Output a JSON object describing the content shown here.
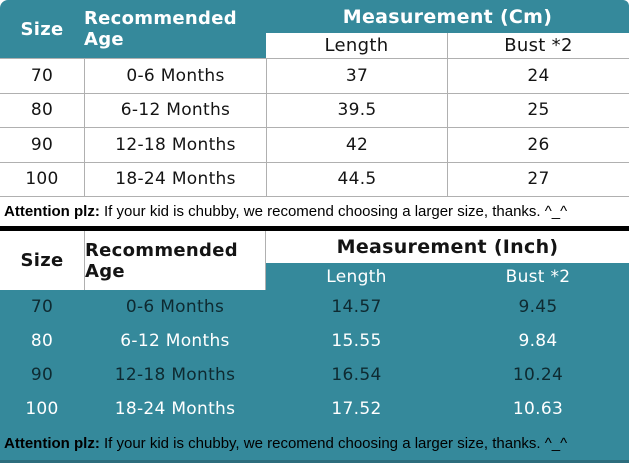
{
  "colors": {
    "accent_teal": "#35899b",
    "divider_black": "#000000",
    "gridline_gray": "#b0b0b0",
    "bottom_edge_teal": "#2d6d7d"
  },
  "table_cm": {
    "headers": {
      "size": "Size",
      "age": "Recommended Age",
      "measurement": "Measurement (Cm)",
      "length": "Length",
      "bust": "Bust *2"
    },
    "rows": [
      {
        "size": "70",
        "age": "0-6 Months",
        "length": "37",
        "bust": "24"
      },
      {
        "size": "80",
        "age": "6-12 Months",
        "length": "39.5",
        "bust": "25"
      },
      {
        "size": "90",
        "age": "12-18 Months",
        "length": "42",
        "bust": "26"
      },
      {
        "size": "100",
        "age": "18-24 Months",
        "length": "44.5",
        "bust": "27"
      }
    ],
    "note_label": "Attention plz:",
    "note_text": " If your kid is chubby, we recomend choosing a larger size, thanks. ^_^"
  },
  "table_inch": {
    "headers": {
      "size": "Size",
      "age": "Recommended Age",
      "measurement": "Measurement (Inch)",
      "length": "Length",
      "bust": "Bust *2"
    },
    "rows": [
      {
        "size": "70",
        "age": "0-6 Months",
        "length": "14.57",
        "bust": "9.45"
      },
      {
        "size": "80",
        "age": "6-12 Months",
        "length": "15.55",
        "bust": "9.84"
      },
      {
        "size": "90",
        "age": "12-18 Months",
        "length": "16.54",
        "bust": "10.24"
      },
      {
        "size": "100",
        "age": "18-24 Months",
        "length": "17.52",
        "bust": "10.63"
      }
    ],
    "note_label": "Attention plz:",
    "note_text": " If your kid is chubby, we recomend choosing a larger size, thanks. ^_^"
  },
  "chart_data": [
    {
      "type": "table",
      "title": "Measurement (Cm)",
      "columns": [
        "Size",
        "Recommended Age",
        "Length",
        "Bust *2"
      ],
      "rows": [
        [
          "70",
          "0-6 Months",
          37,
          24
        ],
        [
          "80",
          "6-12 Months",
          39.5,
          25
        ],
        [
          "90",
          "12-18 Months",
          42,
          26
        ],
        [
          "100",
          "18-24 Months",
          44.5,
          27
        ]
      ],
      "footnote": "Attention plz: If your kid is chubby, we recomend choosing a larger size, thanks. ^_^"
    },
    {
      "type": "table",
      "title": "Measurement (Inch)",
      "columns": [
        "Size",
        "Recommended Age",
        "Length",
        "Bust *2"
      ],
      "rows": [
        [
          "70",
          "0-6 Months",
          14.57,
          9.45
        ],
        [
          "80",
          "6-12 Months",
          15.55,
          9.84
        ],
        [
          "90",
          "12-18 Months",
          16.54,
          10.24
        ],
        [
          "100",
          "18-24 Months",
          17.52,
          10.63
        ]
      ],
      "footnote": "Attention plz: If your kid is chubby, we recomend choosing a larger size, thanks. ^_^"
    }
  ]
}
